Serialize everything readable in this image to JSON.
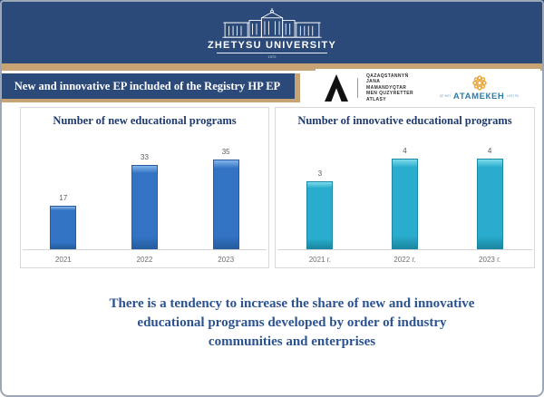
{
  "slide": {
    "university": {
      "name": "ZHETYSU UNIVERSITY",
      "year": "1972"
    },
    "title": "New and innovative EP included of the Registry HP EP",
    "partners": {
      "atlas_lines": [
        "QAZAQSTANNYŃ",
        "JANA",
        "MAMANDYQTAR",
        "MEN QUZYRETTER",
        "ATLASY"
      ],
      "atameken": {
        "name": "АТАМЕКЕН",
        "left_small": "ҚР ҰКП",
        "right_small": "НПП РК"
      }
    },
    "conclusion_lines": [
      "There is a tendency to increase the share of new and innovative",
      "educational programs developed by order of industry",
      "communities and enterprises"
    ]
  },
  "colors": {
    "header_blue": "#2b4a7a",
    "gold": "#c8a474",
    "chart_title_navy": "#1e3a6e",
    "conclusion_blue": "#2b5291"
  },
  "chart_data": [
    {
      "type": "bar",
      "title": "Number of new educational programs",
      "categories": [
        "2021",
        "2022",
        "2023"
      ],
      "values": [
        17,
        33,
        35
      ],
      "ylim": [
        0,
        40
      ],
      "grid": false,
      "data_labels": true,
      "legend": "none",
      "bar_color": "#3273c4",
      "bar_color_light": "#85b4e8",
      "bar_color_dark": "#275d9f"
    },
    {
      "type": "bar",
      "title": "Number of innovative educational programs",
      "categories": [
        "2021 г.",
        "2022 г.",
        "2023 г."
      ],
      "values": [
        3,
        4,
        4
      ],
      "ylim": [
        0,
        4.5
      ],
      "grid": false,
      "data_labels": true,
      "legend": "none",
      "bar_color": "#29accd",
      "bar_color_light": "#7edcec",
      "bar_color_dark": "#1b87a2"
    }
  ]
}
